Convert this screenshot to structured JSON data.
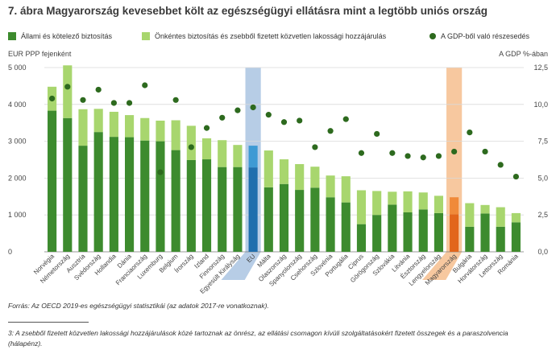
{
  "title": "7. ábra Magyarország kevesebbet költ az egészségügyi ellátásra mint a legtöbb uniós ország",
  "legend": {
    "public": "Állami és kötelező biztosítás",
    "private": "Önkéntes biztosítás és zsebből fizetett közvetlen lakossági hozzájárulás",
    "gdp": "A GDP-ből való részesedés"
  },
  "colors": {
    "public": "#3d8b2e",
    "private": "#a8d66e",
    "gdp": "#2d6a1e",
    "eu_band": "#b7cde6",
    "eu_public": "#1f6fae",
    "eu_private": "#3e9ad4",
    "hu_band": "#f7c89f",
    "hu_public": "#e2661b",
    "hu_private": "#f08a3a",
    "grid": "#d9d9d9",
    "axis": "#777777"
  },
  "source": "Forrás: Az OECD 2019-es egészségügyi statisztikái (az adatok 2017-re vonatkoznak).",
  "footnote": "3: A zsebből fizetett közvetlen lakossági hozzájárulások közé tartoznak az önrész, az ellátási csomagon kívüli szolgáltatásokért fizetett összegek és a paraszolvencia (hálapénz).",
  "chart_data": {
    "type": "bar",
    "stacked": true,
    "title": "7. ábra Magyarország kevesebbet költ az egészségügyi ellátásra mint a legtöbb uniós ország",
    "left_axis_label": "EUR PPP fejenként",
    "right_axis_label": "A GDP %-ában",
    "ylim": [
      0,
      5000
    ],
    "yticks": [
      "0",
      "1 000",
      "2 000",
      "3 000",
      "4 000",
      "5 000"
    ],
    "y2lim": [
      0,
      12.5
    ],
    "y2ticks": [
      "0,0",
      "2,5",
      "5,0",
      "7,5",
      "10,0",
      "12,5"
    ],
    "highlight": {
      "EU": "EU",
      "HU": "Magyarország"
    },
    "categories": [
      "Norvégia",
      "Németország",
      "Ausztria",
      "Svédország",
      "Hollandia",
      "Dánia",
      "Franciaország",
      "Luxemburg",
      "Belgium",
      "Írország",
      "Izland",
      "Finnország",
      "Egyesült Királyság",
      "EU",
      "Málta",
      "Olaszország",
      "Spanyolország",
      "Csehország",
      "Szlovénia",
      "Portugália",
      "Ciprus",
      "Görögország",
      "Szlovákia",
      "Litvánia",
      "Észtország",
      "Lengyelország",
      "Magyarország",
      "Bulgária",
      "Horvátország",
      "Lettország",
      "Románia"
    ],
    "series": [
      {
        "name": "Állami és kötelező biztosítás",
        "axis": "left",
        "values": [
          3830,
          3630,
          2880,
          3250,
          3120,
          3110,
          3020,
          3000,
          2760,
          2490,
          2510,
          2300,
          2300,
          2290,
          1750,
          1840,
          1680,
          1740,
          1480,
          1340,
          750,
          1000,
          1280,
          1070,
          1150,
          1050,
          1020,
          680,
          1040,
          680,
          800
        ]
      },
      {
        "name": "Önkéntes biztosítás és zsebből fizetett közvetlen lakossági hozzájárulás",
        "axis": "left",
        "values": [
          650,
          1430,
          990,
          630,
          680,
          600,
          610,
          560,
          810,
          930,
          570,
          730,
          600,
          590,
          1000,
          670,
          700,
          570,
          590,
          710,
          920,
          650,
          350,
          570,
          460,
          470,
          460,
          640,
          230,
          530,
          250
        ]
      },
      {
        "name": "A GDP-ből való részesedés",
        "axis": "right",
        "type": "scatter",
        "values": [
          10.4,
          11.2,
          10.3,
          11.0,
          10.1,
          10.1,
          11.3,
          5.4,
          10.3,
          7.1,
          8.4,
          9.1,
          9.6,
          9.8,
          9.3,
          8.8,
          8.9,
          7.1,
          8.2,
          9.0,
          6.7,
          8.0,
          6.7,
          6.5,
          6.4,
          6.5,
          6.8,
          8.1,
          6.8,
          5.9,
          5.1
        ]
      }
    ]
  }
}
